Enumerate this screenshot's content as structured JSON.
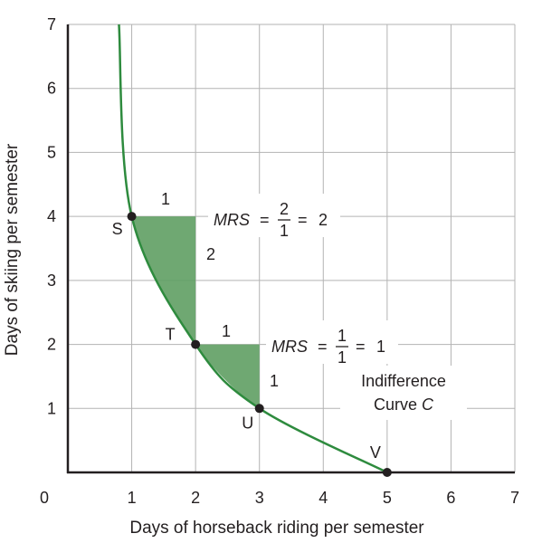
{
  "chart_data": {
    "type": "line",
    "title": "",
    "xlabel": "Days of horseback riding per semester",
    "ylabel": "Days of skiing per semester",
    "xlim": [
      0,
      7
    ],
    "ylim": [
      0,
      7
    ],
    "x_ticks": [
      0,
      1,
      2,
      3,
      4,
      5,
      6,
      7
    ],
    "y_ticks": [
      1,
      2,
      3,
      4,
      5,
      6,
      7
    ],
    "grid": true,
    "curve_color": "#2e8b3e",
    "shade_color": "#5f9f63",
    "curve_label_line1": "Indifference",
    "curve_label_line2_text": "Curve ",
    "curve_label_line2_italic": "C",
    "series": [
      {
        "name": "Indifference Curve C",
        "points": [
          [
            0.8,
            7
          ],
          [
            1,
            4
          ],
          [
            2,
            2
          ],
          [
            3,
            1
          ],
          [
            5,
            0
          ]
        ]
      }
    ],
    "labeled_points": [
      {
        "label": "S",
        "x": 1,
        "y": 4
      },
      {
        "label": "T",
        "x": 2,
        "y": 2
      },
      {
        "label": "U",
        "x": 3,
        "y": 1
      },
      {
        "label": "V",
        "x": 5,
        "y": 0
      }
    ],
    "triangles": [
      {
        "from": [
          1,
          4
        ],
        "to": [
          2,
          2
        ],
        "run_label": "1",
        "rise_label": "2",
        "mrs_numerator": "2",
        "mrs_denominator": "1",
        "mrs_value": "2"
      },
      {
        "from": [
          2,
          2
        ],
        "to": [
          3,
          1
        ],
        "run_label": "1",
        "rise_label": "1",
        "mrs_numerator": "1",
        "mrs_denominator": "1",
        "mrs_value": "1"
      }
    ],
    "mrs_symbol": "MRS"
  }
}
